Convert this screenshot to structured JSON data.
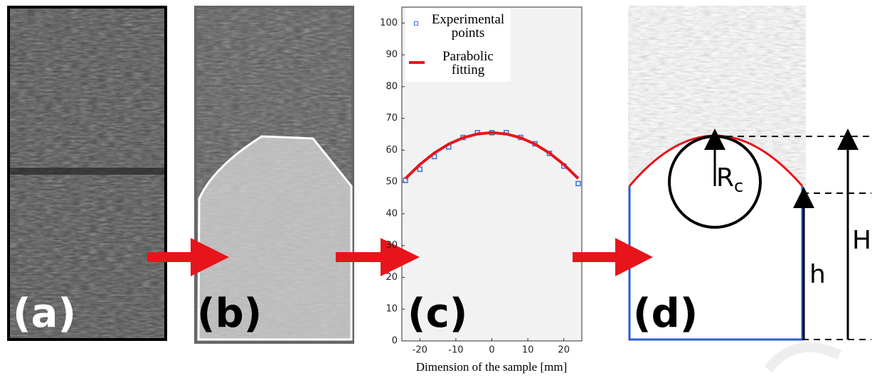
{
  "panels": {
    "a": "(a)",
    "b": "(b)",
    "c": "(c)",
    "d": "(d)"
  },
  "chart_data": {
    "type": "scatter-line",
    "xlabel": "Dimension of the sample [mm]",
    "x": [
      -24,
      -20,
      -16,
      -12,
      -8,
      -4,
      0,
      4,
      8,
      12,
      16,
      20,
      24
    ],
    "series": [
      {
        "name": "Experimental points",
        "color": "#3a6fe0",
        "marker": "square",
        "values": [
          50.5,
          54,
          58,
          61,
          64,
          65.5,
          65.5,
          65.5,
          64,
          62,
          59,
          55,
          49.5
        ]
      },
      {
        "name": "Parabolic fitting",
        "color": "#e8141b",
        "marker": "line",
        "values": [
          51.1,
          55.5,
          59.1,
          61.9,
          63.9,
          65.1,
          65.5,
          65.1,
          63.9,
          61.9,
          59.1,
          55.5,
          51.1
        ]
      }
    ],
    "xlim": [
      -25,
      25
    ],
    "xticks": [
      -20,
      -10,
      0,
      10,
      20
    ],
    "ylim": [
      0,
      105
    ],
    "yticks": [
      0,
      10,
      20,
      30,
      40,
      50,
      60,
      70,
      80,
      90,
      100
    ]
  },
  "annotations": {
    "radius": "R",
    "radius_sub": "c",
    "h": "h",
    "H": "H"
  }
}
